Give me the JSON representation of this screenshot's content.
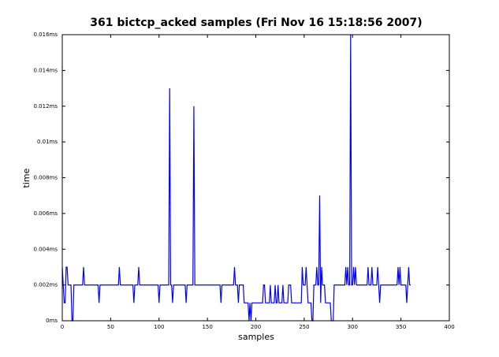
{
  "chart_data": {
    "type": "line",
    "title": "361 bictcp_acked samples (Fri Nov 16 15:18:56 2007)",
    "x_label": "samples",
    "y_label": "time",
    "title_color": "#008000",
    "x_label_color": "#0000cc",
    "y_label_color": "#cc0000",
    "xlim": [
      0,
      400
    ],
    "xticks": [
      0,
      50,
      100,
      150,
      200,
      250,
      300,
      350,
      400
    ],
    "ylim": [
      0,
      0.016
    ],
    "yticks": [
      {
        "value": 0,
        "label": "0ms"
      },
      {
        "value": 0.002,
        "label": "0.002ms"
      },
      {
        "value": 0.004,
        "label": "0.004ms"
      },
      {
        "value": 0.006,
        "label": "0.006ms"
      },
      {
        "value": 0.008,
        "label": "0.008ms"
      },
      {
        "value": 0.01,
        "label": "0.01ms"
      },
      {
        "value": 0.012,
        "label": "0.012ms"
      },
      {
        "value": 0.014,
        "label": "0.014ms"
      },
      {
        "value": 0.016,
        "label": "0.016ms"
      }
    ],
    "grid": false,
    "x": [
      0,
      1,
      2,
      3,
      4,
      5,
      6,
      7,
      8,
      9,
      10,
      11,
      12,
      13,
      14,
      15,
      16,
      17,
      18,
      19,
      20,
      21,
      22,
      23,
      24,
      25,
      26,
      27,
      28,
      29,
      30,
      31,
      32,
      33,
      34,
      35,
      36,
      37,
      38,
      39,
      40,
      41,
      42,
      43,
      44,
      45,
      46,
      47,
      48,
      49,
      50,
      51,
      52,
      53,
      54,
      55,
      56,
      57,
      58,
      59,
      60,
      61,
      62,
      63,
      64,
      65,
      66,
      67,
      68,
      69,
      70,
      71,
      72,
      73,
      74,
      75,
      76,
      77,
      78,
      79,
      80,
      81,
      82,
      83,
      84,
      85,
      86,
      87,
      88,
      89,
      90,
      91,
      92,
      93,
      94,
      95,
      96,
      97,
      98,
      99,
      100,
      101,
      102,
      103,
      104,
      105,
      106,
      107,
      108,
      109,
      110,
      111,
      112,
      113,
      114,
      115,
      116,
      117,
      118,
      119,
      120,
      121,
      122,
      123,
      124,
      125,
      126,
      127,
      128,
      129,
      130,
      131,
      132,
      133,
      134,
      135,
      136,
      137,
      138,
      139,
      140,
      141,
      142,
      143,
      144,
      145,
      146,
      147,
      148,
      149,
      150,
      151,
      152,
      153,
      154,
      155,
      156,
      157,
      158,
      159,
      160,
      161,
      162,
      163,
      164,
      165,
      166,
      167,
      168,
      169,
      170,
      171,
      172,
      173,
      174,
      175,
      176,
      177,
      178,
      179,
      180,
      181,
      182,
      183,
      184,
      185,
      186,
      187,
      188,
      189,
      190,
      191,
      192,
      193,
      194,
      195,
      196,
      197,
      198,
      199,
      200,
      201,
      202,
      203,
      204,
      205,
      206,
      207,
      208,
      209,
      210,
      211,
      212,
      213,
      214,
      215,
      216,
      217,
      218,
      219,
      220,
      221,
      222,
      223,
      224,
      225,
      226,
      227,
      228,
      229,
      230,
      231,
      232,
      233,
      234,
      235,
      236,
      237,
      238,
      239,
      240,
      241,
      242,
      243,
      244,
      245,
      246,
      247,
      248,
      249,
      250,
      251,
      252,
      253,
      254,
      255,
      256,
      257,
      258,
      259,
      260,
      261,
      262,
      263,
      264,
      265,
      266,
      267,
      268,
      269,
      270,
      271,
      272,
      273,
      274,
      275,
      276,
      277,
      278,
      279,
      280,
      281,
      282,
      283,
      284,
      285,
      286,
      287,
      288,
      289,
      290,
      291,
      292,
      293,
      294,
      295,
      296,
      297,
      298,
      299,
      300,
      301,
      302,
      303,
      304,
      305,
      306,
      307,
      308,
      309,
      310,
      311,
      312,
      313,
      314,
      315,
      316,
      317,
      318,
      319,
      320,
      321,
      322,
      323,
      324,
      325,
      326,
      327,
      328,
      329,
      330,
      331,
      332,
      333,
      334,
      335,
      336,
      337,
      338,
      339,
      340,
      341,
      342,
      343,
      344,
      345,
      346,
      347,
      348,
      349,
      350,
      351,
      352,
      353,
      354,
      355,
      356,
      357,
      358,
      359,
      360
    ],
    "series": [
      {
        "color": "#0000ff",
        "values": [
          0.003,
          0.002,
          0.001,
          0.001,
          0.003,
          0.003,
          0.002,
          0.002,
          0.002,
          0.002,
          0,
          0,
          0.002,
          0.002,
          0.002,
          0.002,
          0.002,
          0.002,
          0.002,
          0.002,
          0.002,
          0.002,
          0.003,
          0.002,
          0.002,
          0.002,
          0.002,
          0.002,
          0.002,
          0.002,
          0.002,
          0.002,
          0.002,
          0.002,
          0.002,
          0.002,
          0.002,
          0.002,
          0.001,
          0.002,
          0.002,
          0.002,
          0.002,
          0.002,
          0.002,
          0.002,
          0.002,
          0.002,
          0.002,
          0.002,
          0.002,
          0.002,
          0.002,
          0.002,
          0.002,
          0.002,
          0.002,
          0.002,
          0.002,
          0.003,
          0.002,
          0.002,
          0.002,
          0.002,
          0.002,
          0.002,
          0.002,
          0.002,
          0.002,
          0.002,
          0.002,
          0.002,
          0.002,
          0.002,
          0.001,
          0.002,
          0.002,
          0.002,
          0.002,
          0.003,
          0.002,
          0.002,
          0.002,
          0.002,
          0.002,
          0.002,
          0.002,
          0.002,
          0.002,
          0.002,
          0.002,
          0.002,
          0.002,
          0.002,
          0.002,
          0.002,
          0.002,
          0.002,
          0.002,
          0.002,
          0.001,
          0.002,
          0.002,
          0.002,
          0.002,
          0.002,
          0.002,
          0.002,
          0.002,
          0.002,
          0.002,
          0.013,
          0.002,
          0.002,
          0.001,
          0.002,
          0.002,
          0.002,
          0.002,
          0.002,
          0.002,
          0.002,
          0.002,
          0.002,
          0.002,
          0.002,
          0.002,
          0.002,
          0.001,
          0.002,
          0.002,
          0.002,
          0.002,
          0.002,
          0.002,
          0.002,
          0.012,
          0.002,
          0.002,
          0.002,
          0.002,
          0.002,
          0.002,
          0.002,
          0.002,
          0.002,
          0.002,
          0.002,
          0.002,
          0.002,
          0.002,
          0.002,
          0.002,
          0.002,
          0.002,
          0.002,
          0.002,
          0.002,
          0.002,
          0.002,
          0.002,
          0.002,
          0.002,
          0.002,
          0.001,
          0.002,
          0.002,
          0.002,
          0.002,
          0.002,
          0.002,
          0.002,
          0.002,
          0.002,
          0.002,
          0.002,
          0.002,
          0.002,
          0.003,
          0.002,
          0.002,
          0.002,
          0.001,
          0.002,
          0.002,
          0.002,
          0.002,
          0.002,
          0.001,
          0.001,
          0.001,
          0.001,
          0.001,
          0,
          0.001,
          0,
          0.001,
          0.001,
          0.001,
          0.001,
          0.001,
          0.001,
          0.001,
          0.001,
          0.001,
          0.001,
          0.001,
          0.001,
          0.002,
          0.002,
          0.001,
          0.001,
          0.001,
          0.001,
          0.001,
          0.002,
          0.001,
          0.001,
          0.001,
          0.001,
          0.002,
          0.001,
          0.001,
          0.002,
          0.001,
          0.001,
          0.001,
          0.001,
          0.002,
          0.001,
          0.001,
          0.001,
          0.001,
          0.001,
          0.002,
          0.002,
          0.002,
          0.001,
          0.001,
          0.001,
          0.001,
          0.001,
          0.001,
          0.001,
          0.001,
          0.001,
          0.001,
          0.001,
          0.003,
          0.002,
          0.002,
          0.002,
          0.003,
          0.002,
          0.001,
          0.001,
          0.001,
          0.001,
          0,
          0,
          0.002,
          0.002,
          0.002,
          0.003,
          0.002,
          0.002,
          0.007,
          0.001,
          0.003,
          0.002,
          0.002,
          0.002,
          0.001,
          0.001,
          0.001,
          0.001,
          0.001,
          0.001,
          0,
          0,
          0,
          0.002,
          0.002,
          0.002,
          0.002,
          0.002,
          0.002,
          0.002,
          0.002,
          0.002,
          0.002,
          0.002,
          0.002,
          0.003,
          0.002,
          0.003,
          0.002,
          0.002,
          0.016,
          0.002,
          0.002,
          0.003,
          0.002,
          0.003,
          0.002,
          0.002,
          0.002,
          0.002,
          0.002,
          0.002,
          0.002,
          0.002,
          0.002,
          0.002,
          0.002,
          0.002,
          0.003,
          0.002,
          0.002,
          0.002,
          0.003,
          0.002,
          0.002,
          0.002,
          0.002,
          0.002,
          0.003,
          0.002,
          0.001,
          0.002,
          0.002,
          0.002,
          0.002,
          0.002,
          0.002,
          0.002,
          0.002,
          0.002,
          0.002,
          0.002,
          0.002,
          0.002,
          0.002,
          0.002,
          0.002,
          0.002,
          0.002,
          0.003,
          0.002,
          0.003,
          0.002,
          0.002,
          0.002,
          0.002,
          0.002,
          0.002,
          0.001,
          0.002,
          0.003,
          0.002,
          0.002
        ]
      }
    ]
  }
}
